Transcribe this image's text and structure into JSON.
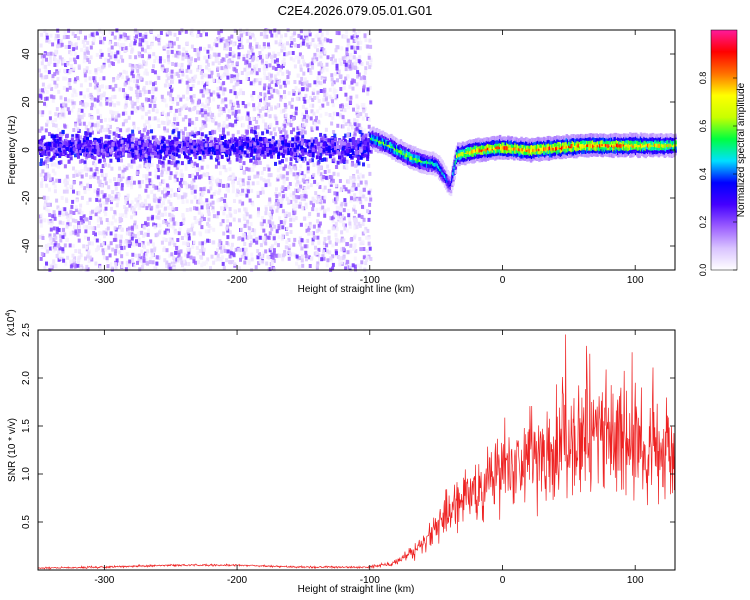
{
  "title": "C2E4.2026.079.05.01.G01",
  "spectrogram": {
    "chart_data": {
      "type": "heatmap",
      "xlabel": "Height of straight line (km)",
      "ylabel": "Frequency (Hz)",
      "xlim": [
        -350,
        130
      ],
      "ylim": [
        -50,
        50
      ],
      "x_ticks": [
        -300,
        -200,
        -100,
        0,
        100
      ],
      "y_ticks": [
        -40,
        -20,
        0,
        20,
        40
      ],
      "colorbar": {
        "label": "Normalized spectral amplitude",
        "range": [
          0,
          1
        ],
        "ticks": [
          "0.0",
          "0.2",
          "0.4",
          "0.6",
          "0.8"
        ],
        "tick_values": [
          0.0,
          0.2,
          0.4,
          0.6,
          0.8
        ],
        "colors": [
          "#ffffff",
          "#d9c3ff",
          "#9a5cff",
          "#4400ff",
          "#0000ff",
          "#00e0ff",
          "#00ff40",
          "#c8ff00",
          "#ffff00",
          "#ff7000",
          "#ff0000",
          "#ff1a9c"
        ]
      },
      "noise_region": {
        "x_range": [
          -350,
          -100
        ],
        "frequency_band": [
          -6,
          8
        ],
        "peak_amplitude": 0.3
      },
      "signal_track": [
        {
          "x": -100,
          "f": 5,
          "a": 0.55
        },
        {
          "x": -90,
          "f": 3,
          "a": 0.6
        },
        {
          "x": -80,
          "f": 0,
          "a": 0.6
        },
        {
          "x": -70,
          "f": -3,
          "a": 0.65
        },
        {
          "x": -60,
          "f": -5,
          "a": 0.55
        },
        {
          "x": -50,
          "f": -6,
          "a": 0.5
        },
        {
          "x": -45,
          "f": -10,
          "a": 0.45
        },
        {
          "x": -40,
          "f": -15,
          "a": 0.3
        },
        {
          "x": -35,
          "f": -2,
          "a": 0.7
        },
        {
          "x": -20,
          "f": 0,
          "a": 0.8
        },
        {
          "x": 0,
          "f": 1,
          "a": 0.85
        },
        {
          "x": 20,
          "f": 0,
          "a": 0.85
        },
        {
          "x": 40,
          "f": 1,
          "a": 0.85
        },
        {
          "x": 60,
          "f": 2,
          "a": 0.85
        },
        {
          "x": 80,
          "f": 2,
          "a": 0.85
        },
        {
          "x": 100,
          "f": 2,
          "a": 0.8
        },
        {
          "x": 130,
          "f": 2,
          "a": 0.7
        }
      ]
    }
  },
  "snr": {
    "chart_data": {
      "type": "line",
      "xlabel": "Height of straight line (km)",
      "ylabel": "SNR (10 * v/v)",
      "multiplier": "(x10",
      "multiplier_exp": "4",
      "multiplier_close": ")",
      "xlim": [
        -350,
        130
      ],
      "ylim": [
        0,
        2.5
      ],
      "x_ticks": [
        -300,
        -200,
        -100,
        0,
        100
      ],
      "y_ticks": [
        0.5,
        1.0,
        1.5,
        2.0,
        2.5
      ],
      "y_tick_labels": [
        "0.5",
        "1.0",
        "1.5",
        "2.0",
        "2.5"
      ],
      "line_color": "#ee2222",
      "series": [
        {
          "x": [
            -350,
            -300,
            -250,
            -200,
            -150,
            -100,
            -80,
            -60,
            -50,
            -40,
            -30,
            -20,
            -10,
            0,
            20,
            40,
            60,
            70,
            80,
            100,
            115,
            130
          ],
          "y": [
            0.02,
            0.03,
            0.05,
            0.05,
            0.03,
            0.03,
            0.08,
            0.25,
            0.45,
            0.6,
            0.75,
            0.85,
            0.95,
            1.05,
            1.15,
            1.3,
            1.45,
            1.5,
            1.35,
            1.25,
            1.2,
            1.15
          ]
        }
      ]
    }
  }
}
